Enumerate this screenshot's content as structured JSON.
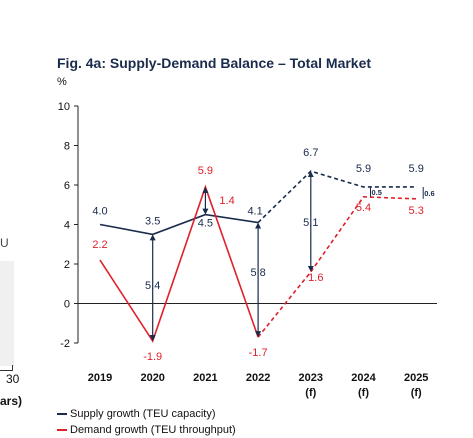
{
  "title": "Fig. 4a: Supply-Demand Balance – Total Market",
  "unit_label": "%",
  "colors": {
    "supply": "#1a2b4c",
    "demand": "#e0202a",
    "axis": "#222222"
  },
  "left_fragments": {
    "u": "U",
    "thirty": "30",
    "ars": "ars)"
  },
  "legend": {
    "supply": "Supply growth (TEU capacity)",
    "demand": "Demand growth (TEU throughput)"
  },
  "chart_data": {
    "type": "line",
    "title": "Fig. 4a: Supply-Demand Balance – Total Market",
    "ylabel": "%",
    "ylim": [
      -2,
      10
    ],
    "yticks": [
      -2,
      0,
      2,
      4,
      6,
      8,
      10
    ],
    "categories": [
      [
        "2019"
      ],
      [
        "2020"
      ],
      [
        "2021"
      ],
      [
        "2022"
      ],
      [
        "2023",
        "(f)"
      ],
      [
        "2024",
        "(f)"
      ],
      [
        "2025",
        "(f)"
      ]
    ],
    "series": [
      {
        "name": "Supply growth (TEU capacity)",
        "values": [
          4.0,
          3.5,
          4.5,
          4.1,
          6.7,
          5.9,
          5.9
        ],
        "labels": [
          "4.0",
          "3.5",
          "4.5",
          "4.1",
          "6.7",
          "5.9",
          "5.9"
        ],
        "dashed_from_index": 3
      },
      {
        "name": "Demand growth (TEU throughput)",
        "values": [
          2.2,
          -1.9,
          5.9,
          -1.7,
          1.6,
          5.4,
          5.3
        ],
        "labels": [
          "2.2",
          "-1.9",
          "5.9",
          "-1.7",
          "1.6",
          "5.4",
          "5.3"
        ],
        "dashed_from_index": 3
      }
    ],
    "gaps": [
      {
        "index": 1,
        "label": "5.4"
      },
      {
        "index": 2,
        "label": "1.4"
      },
      {
        "index": 3,
        "label": "5.8"
      },
      {
        "index": 4,
        "label": "5.1"
      },
      {
        "index": 5,
        "label": "0.5"
      },
      {
        "index": 6,
        "label": "0.6"
      }
    ],
    "grid": false
  }
}
